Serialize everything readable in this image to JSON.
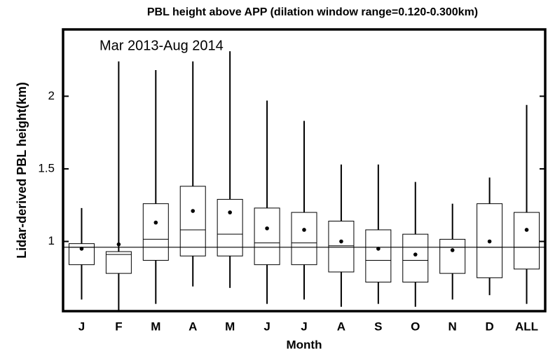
{
  "chart_data": {
    "type": "box",
    "title": "PBL height above APP (dilation window range=0.120-0.300km)",
    "annotation": "Mar 2013-Aug 2014",
    "xlabel": "Month",
    "ylabel": "Lidar-derived PBL height(km)",
    "categories": [
      "J",
      "F",
      "M",
      "A",
      "M",
      "J",
      "J",
      "A",
      "S",
      "O",
      "N",
      "D",
      "ALL"
    ],
    "boxes": [
      {
        "whisker_low": 0.6,
        "q1": 0.84,
        "median": 0.96,
        "q3": 0.985,
        "whisker_high": 1.23,
        "mean": 0.95
      },
      {
        "whisker_low": 0.52,
        "q1": 0.78,
        "median": 0.91,
        "q3": 0.93,
        "whisker_high": 2.24,
        "mean": 0.98
      },
      {
        "whisker_low": 0.57,
        "q1": 0.87,
        "median": 1.015,
        "q3": 1.26,
        "whisker_high": 2.18,
        "mean": 1.13
      },
      {
        "whisker_low": 0.69,
        "q1": 0.9,
        "median": 1.08,
        "q3": 1.38,
        "whisker_high": 2.24,
        "mean": 1.21
      },
      {
        "whisker_low": 0.68,
        "q1": 0.9,
        "median": 1.05,
        "q3": 1.29,
        "whisker_high": 2.31,
        "mean": 1.2
      },
      {
        "whisker_low": 0.57,
        "q1": 0.84,
        "median": 0.99,
        "q3": 1.23,
        "whisker_high": 1.97,
        "mean": 1.09
      },
      {
        "whisker_low": 0.6,
        "q1": 0.84,
        "median": 0.99,
        "q3": 1.2,
        "whisker_high": 1.83,
        "mean": 1.08
      },
      {
        "whisker_low": 0.55,
        "q1": 0.79,
        "median": 0.97,
        "q3": 1.14,
        "whisker_high": 1.53,
        "mean": 1.0
      },
      {
        "whisker_low": 0.57,
        "q1": 0.72,
        "median": 0.87,
        "q3": 1.08,
        "whisker_high": 1.53,
        "mean": 0.95
      },
      {
        "whisker_low": 0.55,
        "q1": 0.72,
        "median": 0.87,
        "q3": 1.05,
        "whisker_high": 1.41,
        "mean": 0.91
      },
      {
        "whisker_low": 0.6,
        "q1": 0.78,
        "median": 0.96,
        "q3": 1.015,
        "whisker_high": 1.26,
        "mean": 0.94
      },
      {
        "whisker_low": 0.63,
        "q1": 0.75,
        "median": 0.96,
        "q3": 1.26,
        "whisker_high": 1.44,
        "mean": 1.0
      },
      {
        "whisker_low": 0.57,
        "q1": 0.81,
        "median": 0.96,
        "q3": 1.2,
        "whisker_high": 1.94,
        "mean": 1.08
      }
    ],
    "hline": 0.96,
    "color": "#000000",
    "ylim": [
      0.52,
      2.46
    ],
    "yticks": [
      1,
      1.5,
      2
    ]
  }
}
